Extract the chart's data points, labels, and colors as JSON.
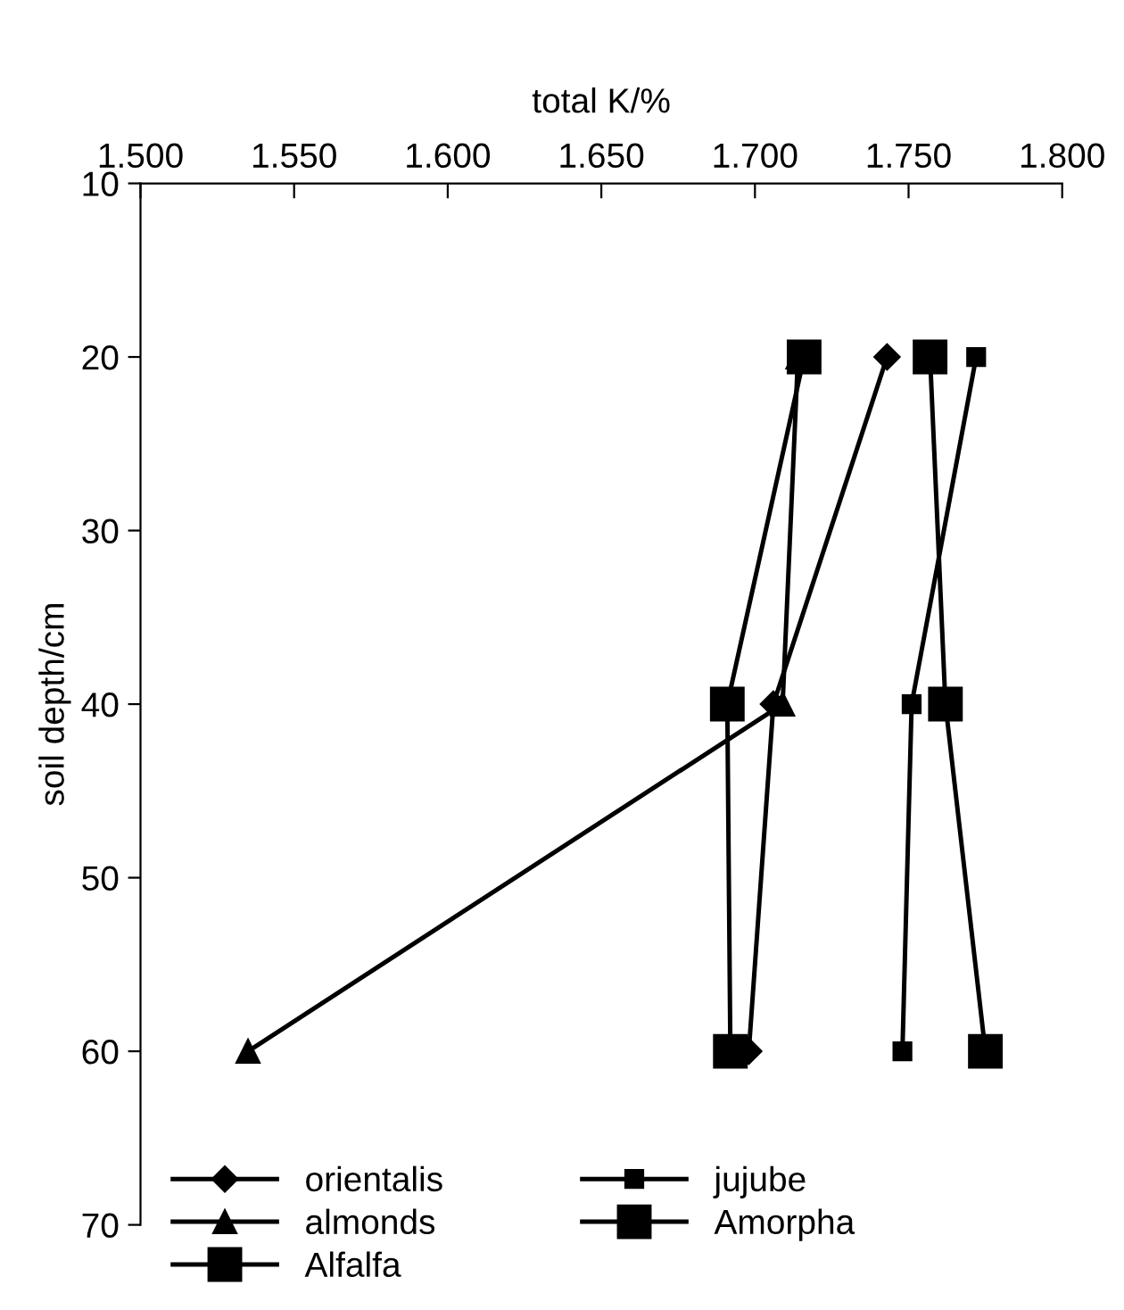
{
  "chart_data": {
    "type": "line",
    "xlabel": "total K/%",
    "ylabel": "soil depth/cm",
    "xlim": [
      1.5,
      1.8
    ],
    "ylim": [
      70,
      10
    ],
    "xticks": [
      {
        "value": 1.5,
        "label": "1.500"
      },
      {
        "value": 1.55,
        "label": "1.550"
      },
      {
        "value": 1.6,
        "label": "1.600"
      },
      {
        "value": 1.65,
        "label": "1.650"
      },
      {
        "value": 1.7,
        "label": "1.700"
      },
      {
        "value": 1.75,
        "label": "1.750"
      },
      {
        "value": 1.8,
        "label": "1.800"
      }
    ],
    "yticks": [
      10,
      20,
      30,
      40,
      50,
      60,
      70
    ],
    "grid": false,
    "legend": "bottom left",
    "line_style": "solid",
    "series": [
      {
        "name": "orientalis",
        "color": "#000000",
        "marker": "diamond",
        "x": [
          1.743,
          1.706,
          1.698
        ],
        "values": [
          20,
          40,
          60
        ]
      },
      {
        "name": "almonds",
        "color": "#000000",
        "marker": "triangle",
        "x": [
          1.714,
          1.709,
          1.535
        ],
        "values": [
          20,
          40,
          60
        ]
      },
      {
        "name": "Alfalfa",
        "color": "#000000",
        "marker": "square",
        "x": [
          1.716,
          1.691,
          1.692
        ],
        "values": [
          20,
          40,
          60
        ]
      },
      {
        "name": "jujube",
        "color": "#000000",
        "marker": "square",
        "x": [
          1.772,
          1.751,
          1.748
        ],
        "values": [
          20,
          40,
          60
        ]
      },
      {
        "name": "Amorpha",
        "color": "#000000",
        "marker": "square",
        "x": [
          1.757,
          1.762,
          1.775
        ],
        "values": [
          20,
          40,
          60
        ]
      }
    ]
  }
}
